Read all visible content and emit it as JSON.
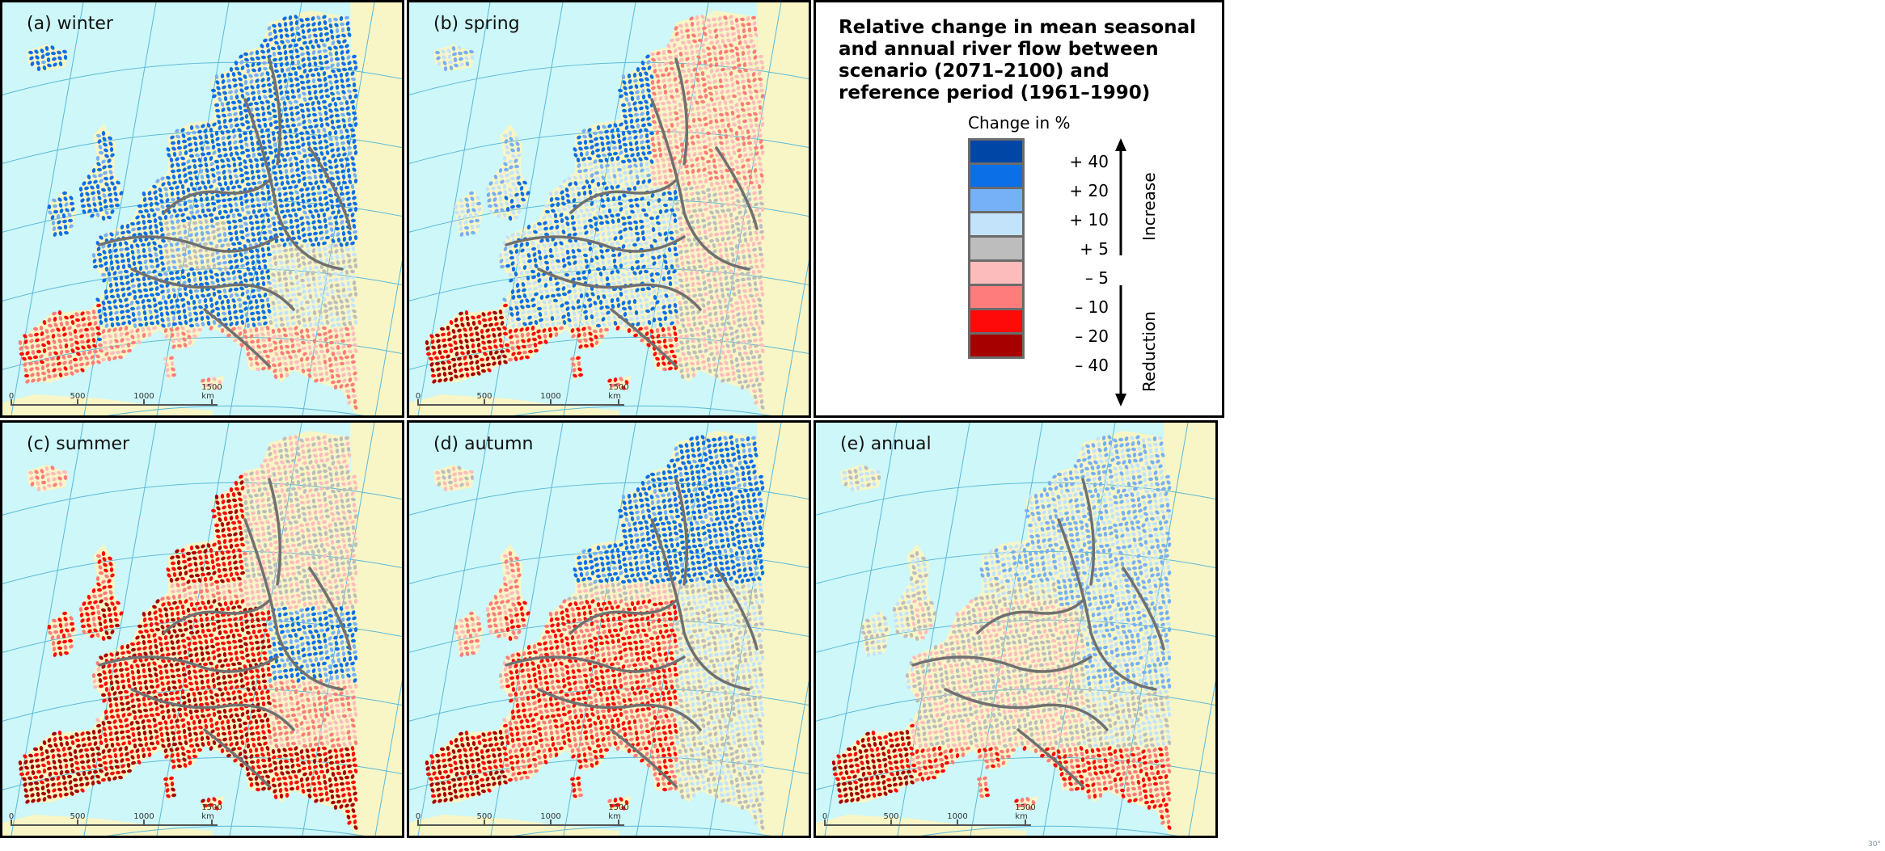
{
  "panels": [
    {
      "id": "winter",
      "label": "(a) winter",
      "scheme": "winter"
    },
    {
      "id": "spring",
      "label": "(b) spring",
      "scheme": "spring"
    },
    {
      "id": "summer",
      "label": "(c) summer",
      "scheme": "summer"
    },
    {
      "id": "autumn",
      "label": "(d) autumn",
      "scheme": "autumn"
    },
    {
      "id": "annual",
      "label": "(e) annual",
      "scheme": "annual"
    }
  ],
  "scale": {
    "labels": [
      "0",
      "500",
      "1000",
      "1500 km"
    ]
  },
  "legend": {
    "title": "Relative change in mean seasonal and annual river flow between scenario (2071–2100) and reference period (1961–1990)",
    "caption": "Change in %",
    "classes": [
      {
        "color": "#0046a6"
      },
      {
        "color": "#0b6fe8"
      },
      {
        "color": "#76b0f7"
      },
      {
        "color": "#c3e3fb"
      },
      {
        "color": "#bdbdbd"
      },
      {
        "color": "#fdbcbc"
      },
      {
        "color": "#fe7c7c"
      },
      {
        "color": "#ff0a0a"
      },
      {
        "color": "#a70000"
      }
    ],
    "breaks": [
      "+ 40",
      "+ 20",
      "+ 10",
      "+ 5",
      "– 5",
      "– 10",
      "– 20",
      "– 40"
    ],
    "increase_label": "Increase",
    "reduction_label": "Reduction"
  },
  "colors": {
    "sea": "#cdf7f8",
    "land": "#f8f6c6",
    "graticule": "#5bb8d8",
    "borders": "#707070"
  },
  "corner_mark": "30°"
}
